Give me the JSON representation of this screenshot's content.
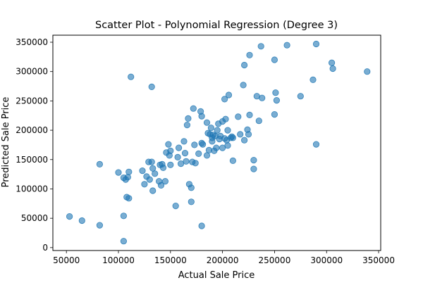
{
  "chart_data": {
    "type": "scatter",
    "title": "Scatter Plot - Polynomial Regression (Degree 3)",
    "xlabel": "Actual Sale Price",
    "ylabel": "Predicted Sale Price",
    "xlim": [
      37000,
      352000
    ],
    "ylim": [
      -5000,
      362000
    ],
    "xticks": [
      50000,
      100000,
      150000,
      200000,
      250000,
      300000,
      350000
    ],
    "yticks": [
      0,
      50000,
      100000,
      150000,
      200000,
      250000,
      300000,
      350000
    ],
    "grid": false,
    "marker_color": "#1f77b4",
    "marker_alpha": 0.6,
    "points": [
      [
        53000,
        53000
      ],
      [
        65000,
        46000
      ],
      [
        82000,
        38000
      ],
      [
        105000,
        11000
      ],
      [
        105000,
        54000
      ],
      [
        82000,
        142000
      ],
      [
        100000,
        128000
      ],
      [
        105000,
        119000
      ],
      [
        107000,
        116000
      ],
      [
        109000,
        120000
      ],
      [
        110000,
        129000
      ],
      [
        108000,
        86000
      ],
      [
        110000,
        84000
      ],
      [
        112000,
        291000
      ],
      [
        123000,
        131000
      ],
      [
        125000,
        108000
      ],
      [
        127000,
        121000
      ],
      [
        129000,
        146000
      ],
      [
        130000,
        116000
      ],
      [
        132000,
        146000
      ],
      [
        133000,
        135000
      ],
      [
        133000,
        97000
      ],
      [
        135000,
        126000
      ],
      [
        132000,
        274000
      ],
      [
        139000,
        113000
      ],
      [
        140000,
        141000
      ],
      [
        141000,
        106000
      ],
      [
        142000,
        142000
      ],
      [
        143000,
        136000
      ],
      [
        145000,
        113000
      ],
      [
        146000,
        162000
      ],
      [
        148000,
        176000
      ],
      [
        150000,
        165000
      ],
      [
        150000,
        141000
      ],
      [
        149000,
        157000
      ],
      [
        155000,
        71000
      ],
      [
        157000,
        154000
      ],
      [
        158000,
        170000
      ],
      [
        160000,
        143000
      ],
      [
        163000,
        181000
      ],
      [
        164000,
        161000
      ],
      [
        165000,
        147000
      ],
      [
        166000,
        209000
      ],
      [
        167000,
        220000
      ],
      [
        168000,
        108000
      ],
      [
        170000,
        102000
      ],
      [
        170000,
        78000
      ],
      [
        171000,
        146000
      ],
      [
        172000,
        237000
      ],
      [
        173000,
        175000
      ],
      [
        174000,
        144000
      ],
      [
        177000,
        160000
      ],
      [
        179000,
        232000
      ],
      [
        180000,
        224000
      ],
      [
        180000,
        178000
      ],
      [
        181000,
        176000
      ],
      [
        180000,
        37000
      ],
      [
        185000,
        213000
      ],
      [
        185000,
        157000
      ],
      [
        186000,
        195000
      ],
      [
        187000,
        166000
      ],
      [
        188000,
        193000
      ],
      [
        189000,
        204000
      ],
      [
        190000,
        187000
      ],
      [
        190000,
        181000
      ],
      [
        191000,
        192000
      ],
      [
        192000,
        165000
      ],
      [
        193000,
        190000
      ],
      [
        194000,
        170000
      ],
      [
        195000,
        200000
      ],
      [
        196000,
        211000
      ],
      [
        197000,
        185000
      ],
      [
        198000,
        190000
      ],
      [
        200000,
        215000
      ],
      [
        200000,
        170000
      ],
      [
        202000,
        253000
      ],
      [
        202000,
        186000
      ],
      [
        203000,
        219000
      ],
      [
        204000,
        183000
      ],
      [
        205000,
        200000
      ],
      [
        205000,
        174000
      ],
      [
        206000,
        260000
      ],
      [
        208000,
        187000
      ],
      [
        209000,
        189000
      ],
      [
        210000,
        187000
      ],
      [
        210000,
        148000
      ],
      [
        215000,
        223000
      ],
      [
        217000,
        193000
      ],
      [
        220000,
        277000
      ],
      [
        221000,
        183000
      ],
      [
        221000,
        311000
      ],
      [
        224000,
        201000
      ],
      [
        225000,
        193000
      ],
      [
        226000,
        226000
      ],
      [
        226000,
        328000
      ],
      [
        230000,
        149000
      ],
      [
        230000,
        134000
      ],
      [
        233000,
        258000
      ],
      [
        235000,
        216000
      ],
      [
        237000,
        343000
      ],
      [
        238000,
        255000
      ],
      [
        250000,
        320000
      ],
      [
        250000,
        227000
      ],
      [
        251000,
        264000
      ],
      [
        252000,
        251000
      ],
      [
        262000,
        345000
      ],
      [
        275000,
        258000
      ],
      [
        287000,
        286000
      ],
      [
        290000,
        347000
      ],
      [
        290000,
        176000
      ],
      [
        305000,
        315000
      ],
      [
        306000,
        305000
      ],
      [
        339000,
        300000
      ]
    ]
  }
}
